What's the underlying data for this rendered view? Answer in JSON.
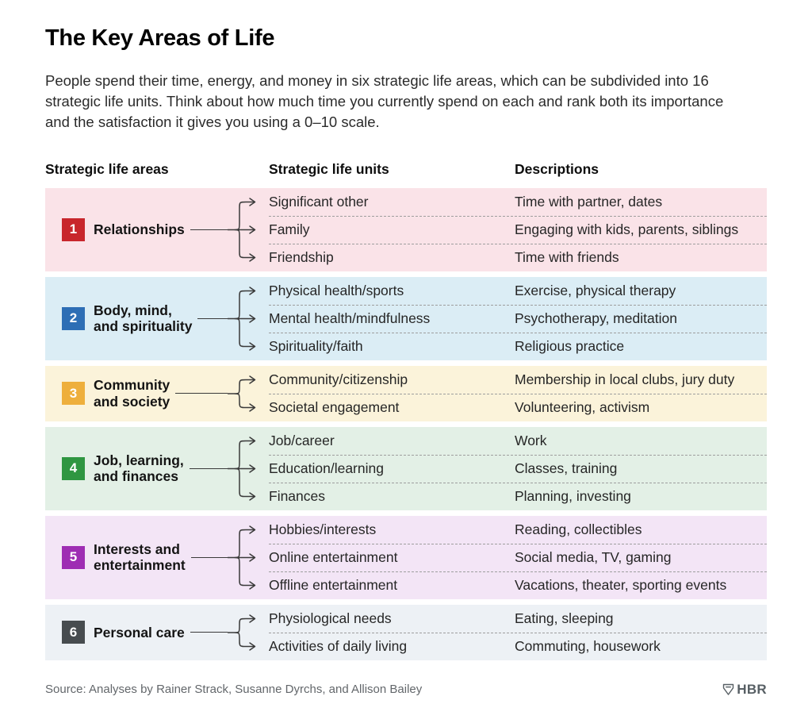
{
  "header": {
    "title": "The Key Areas of Life",
    "intro": "People spend their time, energy, and money in six strategic life areas, which can be subdivided into 16 strategic life units. Think about how much time you currently spend on each and rank both its importance and the satisfaction it gives you using a 0–10 scale."
  },
  "columns": {
    "areas": "Strategic life areas",
    "units": "Strategic life units",
    "descriptions": "Descriptions"
  },
  "areas": [
    {
      "number": "1",
      "label": "Relationships",
      "badge_color": "#c8262c",
      "band_color": "#fae3e8",
      "rows": [
        {
          "unit": "Significant other",
          "desc": "Time with partner, dates"
        },
        {
          "unit": "Family",
          "desc": "Engaging with kids, parents, siblings"
        },
        {
          "unit": "Friendship",
          "desc": "Time with friends"
        }
      ]
    },
    {
      "number": "2",
      "label": "Body, mind,\nand spirituality",
      "badge_color": "#2d6eb5",
      "band_color": "#dbedf5",
      "rows": [
        {
          "unit": "Physical health/sports",
          "desc": "Exercise, physical therapy"
        },
        {
          "unit": "Mental health/mindfulness",
          "desc": "Psychotherapy, meditation"
        },
        {
          "unit": "Spirituality/faith",
          "desc": "Religious practice"
        }
      ]
    },
    {
      "number": "3",
      "label": "Community\nand society",
      "badge_color": "#eeaf3c",
      "band_color": "#fbf3da",
      "rows": [
        {
          "unit": "Community/citizenship",
          "desc": "Membership in local clubs, jury duty"
        },
        {
          "unit": "Societal engagement",
          "desc": "Volunteering, activism"
        }
      ]
    },
    {
      "number": "4",
      "label": "Job, learning,\nand finances",
      "badge_color": "#2f9641",
      "band_color": "#e3f0e6",
      "rows": [
        {
          "unit": "Job/career",
          "desc": "Work"
        },
        {
          "unit": "Education/learning",
          "desc": "Classes, training"
        },
        {
          "unit": "Finances",
          "desc": "Planning, investing"
        }
      ]
    },
    {
      "number": "5",
      "label": "Interests and\nentertainment",
      "badge_color": "#9e2db3",
      "band_color": "#f3e5f6",
      "rows": [
        {
          "unit": "Hobbies/interests",
          "desc": "Reading, collectibles"
        },
        {
          "unit": "Online entertainment",
          "desc": "Social media, TV, gaming"
        },
        {
          "unit": "Offline entertainment",
          "desc": "Vacations, theater, sporting events"
        }
      ]
    },
    {
      "number": "6",
      "label": "Personal care",
      "badge_color": "#474c4f",
      "band_color": "#edf1f5",
      "rows": [
        {
          "unit": "Physiological needs",
          "desc": "Eating, sleeping"
        },
        {
          "unit": "Activities of daily living",
          "desc": "Commuting, housework"
        }
      ]
    }
  ],
  "footer": {
    "source": "Source: Analyses by Rainer Strack, Susanne Dyrchs, and Allison Bailey",
    "logo": "HBR"
  }
}
